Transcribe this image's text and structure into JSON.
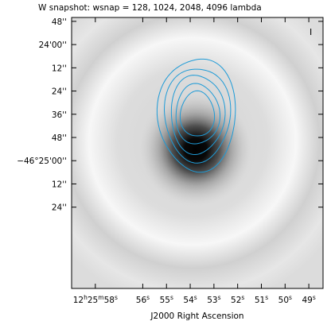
{
  "chart_data": {
    "type": "heatmap",
    "title": "W snapshot: wsnap = 128, 1024, 2048, 4096 lambda",
    "xlabel": "J2000 Right Ascension",
    "ylabel": "",
    "corner_label": "I",
    "x_ticks": [
      "12h25m58s",
      "56s",
      "55s",
      "54s",
      "53s",
      "52s",
      "51s",
      "50s",
      "49s"
    ],
    "x_tick_parts": [
      {
        "main": "12",
        "sup1": "h",
        "mid": "25",
        "sup2": "m",
        "end": "58",
        "sup3": "s"
      },
      {
        "main": "56",
        "sup1": "s"
      },
      {
        "main": "55",
        "sup1": "s"
      },
      {
        "main": "54",
        "sup1": "s"
      },
      {
        "main": "53",
        "sup1": "s"
      },
      {
        "main": "52",
        "sup1": "s"
      },
      {
        "main": "51",
        "sup1": "s"
      },
      {
        "main": "50",
        "sup1": "s"
      },
      {
        "main": "49",
        "sup1": "s"
      }
    ],
    "x_tick_values": [
      58,
      56,
      55,
      54,
      53,
      52,
      51,
      50,
      49
    ],
    "xlim": [
      59,
      48.4
    ],
    "y_ticks": [
      "48''",
      "24'00''",
      "12''",
      "24''",
      "36''",
      "48''",
      "−46°25'00''",
      "12''",
      "24''"
    ],
    "y_tick_values": [
      -48,
      -36,
      -24,
      -12,
      0,
      12,
      24,
      36,
      48
    ],
    "ylim": [
      -50,
      90
    ],
    "image": {
      "colormap": "greyscale (white = low, black = high)",
      "source_center": [
        53.8,
        0
      ],
      "ring_center": [
        53.8,
        -6
      ],
      "ring_radius": 75
    },
    "contours": {
      "color": "#1e9bd7",
      "levels": 5,
      "center": [
        53.7,
        0
      ],
      "radii_x_sec": [
        0.7,
        0.9,
        1.1,
        1.35,
        1.6
      ],
      "radii_y_arcsec": [
        12,
        16,
        21,
        25,
        30
      ]
    }
  }
}
